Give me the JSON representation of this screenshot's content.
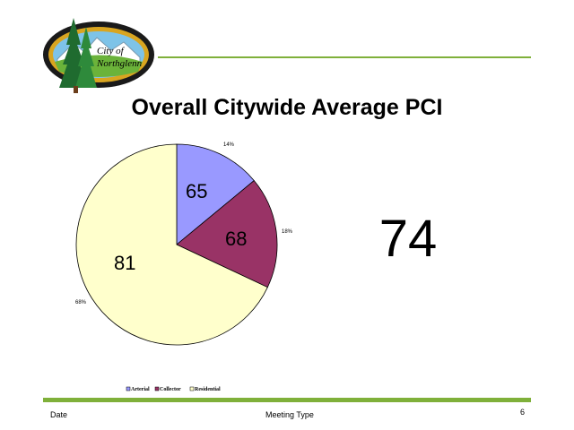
{
  "logo": {
    "text_line1": "City of",
    "text_line2": "Northglenn"
  },
  "title": "Overall Citywide Average PCI",
  "big_number": "74",
  "footer": {
    "date": "Date",
    "meeting_type": "Meeting Type",
    "page_number": "6"
  },
  "colors": {
    "accent_green": "#7fb03a",
    "arterial": "#9999ff",
    "collector": "#993366",
    "residential": "#ffffcc"
  },
  "chart_data": {
    "type": "pie",
    "title": "",
    "categories": [
      "Arterial",
      "Collector",
      "Residential"
    ],
    "values": [
      14,
      18,
      68
    ],
    "value_unit": "%",
    "percent_labels": [
      "14%",
      "18%",
      "68%"
    ],
    "slice_labels": [
      "65",
      "68",
      "81"
    ],
    "colors": [
      "#9999ff",
      "#993366",
      "#ffffcc"
    ],
    "legend": {
      "placement": "bottom-left",
      "entries": [
        "Arterial",
        "Collector",
        "Residential"
      ]
    }
  }
}
